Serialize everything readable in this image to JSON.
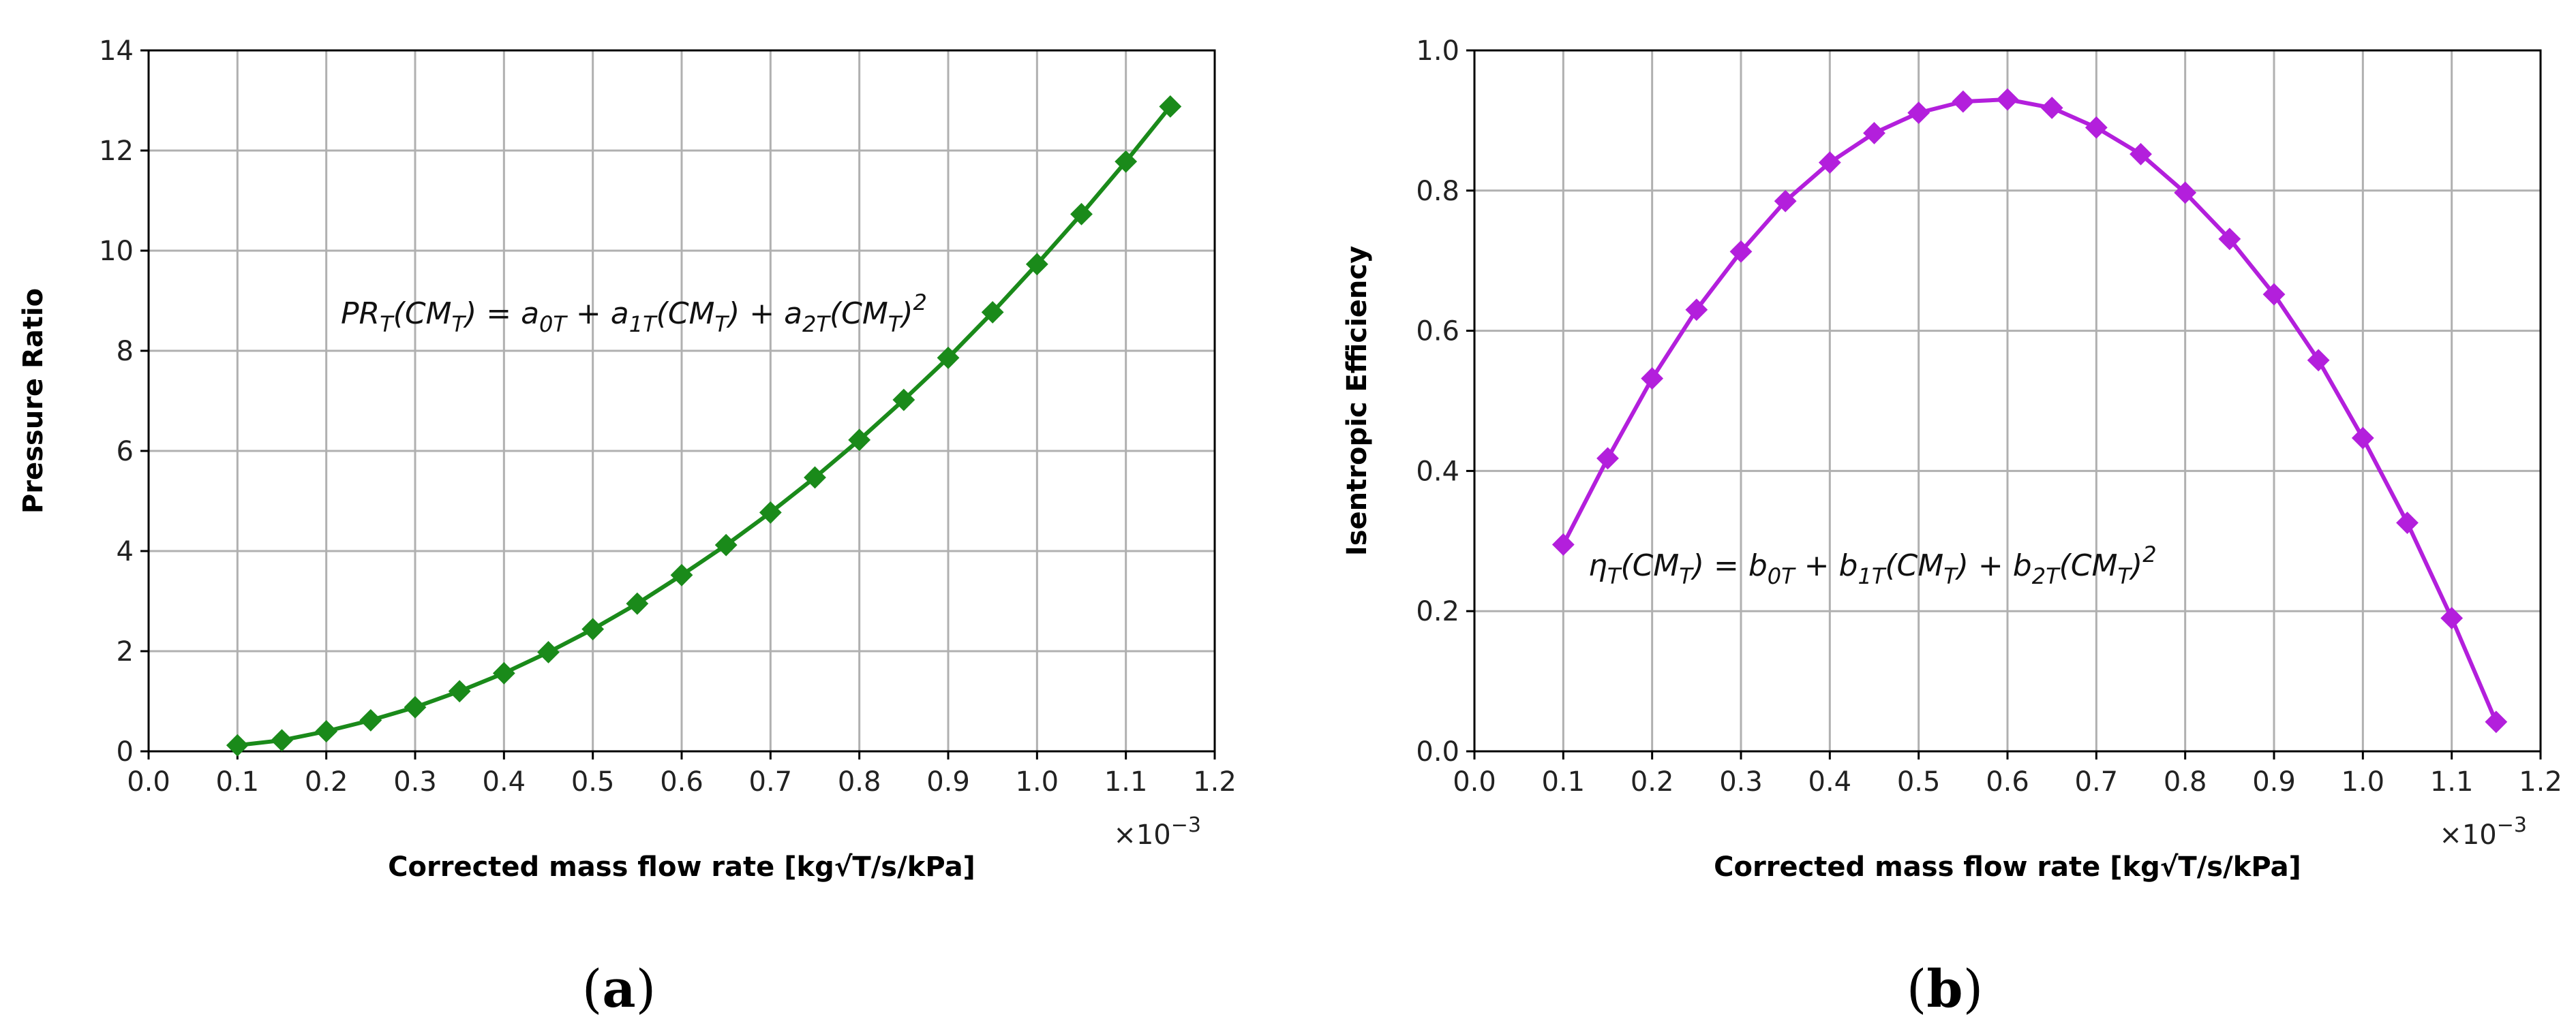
{
  "chart_data": [
    {
      "type": "line",
      "panel_label": "a",
      "ylabel": "Pressure Ratio",
      "xlabel": "Corrected mass flow rate [kg√T/s/kPa]",
      "x_multiplier": "×10",
      "x_multiplier_exp": "−3",
      "xlim": [
        0.0,
        1.2
      ],
      "ylim": [
        0,
        14
      ],
      "xticks": [
        "0.0",
        "0.1",
        "0.2",
        "0.3",
        "0.4",
        "0.5",
        "0.6",
        "0.7",
        "0.8",
        "0.9",
        "1.0",
        "1.1",
        "1.2"
      ],
      "yticks": [
        "0",
        "2",
        "4",
        "6",
        "8",
        "10",
        "12",
        "14"
      ],
      "grid": true,
      "color": "#1a8a1a",
      "marker": "diamond",
      "equation": {
        "base": "PR",
        "sub": "T",
        "rest_parts": [
          "(CM",
          "T",
          ") = a",
          "0T",
          " + a",
          "1T",
          "(CM",
          "T",
          ") + a",
          "2T",
          "(CM",
          "T",
          ")",
          "2"
        ]
      },
      "series": [
        {
          "x": [
            0.1,
            0.15,
            0.2,
            0.25,
            0.3,
            0.35,
            0.4,
            0.45,
            0.5,
            0.55,
            0.6,
            0.65,
            0.7,
            0.75,
            0.8,
            0.85,
            0.9,
            0.95,
            1.0,
            1.05,
            1.1,
            1.15
          ],
          "y": [
            0.12,
            0.22,
            0.4,
            0.62,
            0.88,
            1.2,
            1.56,
            1.98,
            2.44,
            2.95,
            3.52,
            4.12,
            4.77,
            5.47,
            6.22,
            7.02,
            7.86,
            8.77,
            9.73,
            10.73,
            11.78,
            12.88
          ]
        }
      ]
    },
    {
      "type": "line",
      "panel_label": "b",
      "ylabel": "Isentropic Efficiency",
      "xlabel": "Corrected mass flow rate [kg√T/s/kPa]",
      "x_multiplier": "×10",
      "x_multiplier_exp": "−3",
      "xlim": [
        0.0,
        1.2
      ],
      "ylim": [
        0.0,
        1.0
      ],
      "xticks": [
        "0.0",
        "0.1",
        "0.2",
        "0.3",
        "0.4",
        "0.5",
        "0.6",
        "0.7",
        "0.8",
        "0.9",
        "1.0",
        "1.1",
        "1.2"
      ],
      "yticks": [
        "0.0",
        "0.2",
        "0.4",
        "0.6",
        "0.8",
        "1.0"
      ],
      "grid": true,
      "color": "#b31fdc",
      "marker": "diamond",
      "equation": {
        "base": "η",
        "sub": "T",
        "rest_parts": [
          "(CM",
          "T",
          ") = b",
          "0T",
          " + b",
          "1T",
          "(CM",
          "T",
          ") + b",
          "2T",
          "(CM",
          "T",
          ")",
          "2"
        ]
      },
      "series": [
        {
          "x": [
            0.1,
            0.15,
            0.2,
            0.25,
            0.3,
            0.35,
            0.4,
            0.45,
            0.5,
            0.55,
            0.6,
            0.65,
            0.7,
            0.75,
            0.8,
            0.85,
            0.9,
            0.95,
            1.0,
            1.05,
            1.1,
            1.15
          ],
          "y": [
            0.295,
            0.418,
            0.532,
            0.63,
            0.713,
            0.785,
            0.84,
            0.882,
            0.911,
            0.927,
            0.93,
            0.918,
            0.89,
            0.852,
            0.797,
            0.731,
            0.652,
            0.558,
            0.447,
            0.326,
            0.19,
            0.042
          ]
        }
      ]
    }
  ]
}
